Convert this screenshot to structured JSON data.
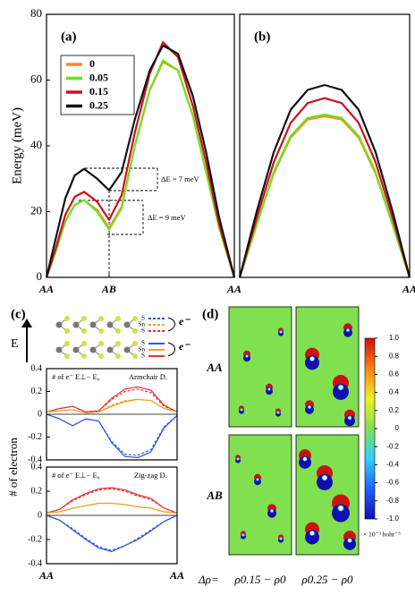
{
  "chart_data": [
    {
      "type": "line",
      "title": "(a)",
      "ylabel": "Energy (meV)",
      "x": [
        0,
        0.05,
        0.1,
        0.15,
        0.2,
        0.27,
        0.333,
        0.4,
        0.47,
        0.55,
        0.62,
        0.7,
        0.78,
        0.85,
        0.92,
        1
      ],
      "xlim": [
        0,
        1
      ],
      "xticks": [
        {
          "value": 0,
          "label": "AA"
        },
        {
          "value": 0.333,
          "label": "AB"
        },
        {
          "value": 1,
          "label": "AA"
        }
      ],
      "ylim": [
        0,
        80
      ],
      "yticks": [
        0,
        20,
        40,
        60,
        80
      ],
      "legend": "upper left",
      "annotations": [
        "ΔE = 7 meV",
        "ΔE = 9 meV"
      ],
      "series": [
        {
          "name": "0",
          "color": "#ff8a1c",
          "values": [
            0,
            8,
            17,
            22,
            23.5,
            20.5,
            15,
            21.5,
            40,
            57,
            65.5,
            63,
            49,
            32,
            15,
            0
          ]
        },
        {
          "name": "0.05",
          "color": "#6ee020",
          "values": [
            0,
            8,
            17,
            22,
            23.5,
            20,
            14.5,
            21,
            40,
            57,
            66,
            63,
            49,
            32,
            15,
            0
          ]
        },
        {
          "name": "0.15",
          "color": "#cc1020",
          "values": [
            0,
            9,
            19,
            24.5,
            26,
            23,
            17.5,
            25,
            44,
            62,
            71.5,
            67,
            52,
            35,
            16,
            0
          ]
        },
        {
          "name": "0.25",
          "color": "#111111",
          "values": [
            0,
            12,
            24,
            31,
            33,
            30,
            26.5,
            32,
            48,
            63,
            70.5,
            68,
            55,
            38,
            18,
            0
          ]
        }
      ]
    },
    {
      "type": "line",
      "title": "(b)",
      "x": [
        0,
        0.1,
        0.2,
        0.3,
        0.4,
        0.5,
        0.6,
        0.7,
        0.8,
        0.9,
        1
      ],
      "xlim": [
        0,
        1
      ],
      "xticks": [
        {
          "value": 1,
          "label": "AA"
        }
      ],
      "ylim": [
        0,
        80
      ],
      "series": [
        {
          "color": "#ff8a1c",
          "values": [
            0,
            16,
            31.5,
            42.5,
            48,
            49,
            48,
            42.5,
            31.5,
            16,
            0
          ]
        },
        {
          "color": "#6ee020",
          "values": [
            0,
            16,
            32,
            43,
            48.5,
            49.5,
            48.5,
            43,
            32,
            16,
            0
          ]
        },
        {
          "color": "#cc1020",
          "values": [
            0,
            18,
            35,
            47,
            53,
            54.5,
            53,
            47,
            35,
            18,
            0
          ]
        },
        {
          "color": "#111111",
          "values": [
            0,
            20,
            38,
            51,
            57,
            58.5,
            57,
            51,
            38,
            20,
            0
          ]
        }
      ]
    },
    {
      "type": "line",
      "title": "(c)",
      "ylabel": "# of electron",
      "x": [
        0,
        0.1,
        0.2,
        0.3,
        0.4,
        0.5,
        0.6,
        0.7,
        0.8,
        0.9,
        1
      ],
      "xlim": [
        0,
        1
      ],
      "ylim": [
        -0.4,
        0.4
      ],
      "yticks": [
        0.4,
        0.2,
        0,
        -0.2,
        -0.4
      ],
      "zero_line": true,
      "annotations": [
        "# of e⁻ E⊥− E₀",
        "Armchair D."
      ],
      "series": [
        {
          "color": "#e83038",
          "dashed": true,
          "values": [
            0.02,
            0.05,
            0.07,
            0.02,
            0.03,
            0.13,
            0.2,
            0.22,
            0.19,
            0.07,
            0.02
          ]
        },
        {
          "color": "#e83038",
          "values": [
            0.02,
            0.05,
            0.07,
            0.02,
            0.03,
            0.14,
            0.22,
            0.24,
            0.21,
            0.08,
            0.02
          ]
        },
        {
          "color": "#f0a020",
          "dashed": true,
          "values": [
            0.02,
            0.03,
            0.04,
            0.01,
            0.02,
            0.08,
            0.12,
            0.13,
            0.12,
            0.05,
            0.02
          ]
        },
        {
          "color": "#f0a020",
          "values": [
            0.02,
            0.03,
            0.04,
            0.01,
            0.02,
            0.07,
            0.11,
            0.13,
            0.12,
            0.05,
            0.02
          ]
        },
        {
          "color": "#3355dd",
          "dashed": true,
          "values": [
            0,
            -0.04,
            -0.1,
            -0.04,
            -0.06,
            -0.24,
            -0.35,
            -0.36,
            -0.31,
            -0.11,
            -0.01
          ]
        },
        {
          "color": "#3355dd",
          "values": [
            0,
            -0.04,
            -0.1,
            -0.04,
            -0.06,
            -0.25,
            -0.37,
            -0.38,
            -0.33,
            -0.12,
            -0.01
          ]
        }
      ]
    },
    {
      "type": "line",
      "x": [
        0,
        0.1,
        0.2,
        0.3,
        0.4,
        0.5,
        0.6,
        0.7,
        0.8,
        0.9,
        1
      ],
      "xlim": [
        0,
        1
      ],
      "xticks": [
        {
          "value": 0,
          "label": "AA"
        },
        {
          "value": 1,
          "label": "AA"
        }
      ],
      "ylim": [
        -0.4,
        0.4
      ],
      "yticks": [
        0.4,
        0.2,
        0,
        -0.2,
        -0.4
      ],
      "zero_line": true,
      "annotations": [
        "# of e⁻ E⊥− E₀",
        "Zig-zag D."
      ],
      "series": [
        {
          "color": "#e83038",
          "dashed": true,
          "values": [
            0.02,
            0.05,
            0.12,
            0.17,
            0.21,
            0.22,
            0.2,
            0.16,
            0.13,
            0.06,
            0.02
          ]
        },
        {
          "color": "#e83038",
          "values": [
            0.02,
            0.05,
            0.13,
            0.18,
            0.22,
            0.23,
            0.21,
            0.17,
            0.14,
            0.06,
            0.02
          ]
        },
        {
          "color": "#f0a020",
          "dashed": true,
          "values": [
            0.02,
            0.03,
            0.06,
            0.08,
            0.1,
            0.1,
            0.09,
            0.07,
            0.06,
            0.03,
            0.02
          ]
        },
        {
          "color": "#f0a020",
          "values": [
            0.02,
            0.03,
            0.06,
            0.08,
            0.1,
            0.1,
            0.09,
            0.07,
            0.06,
            0.03,
            0.02
          ]
        },
        {
          "color": "#3355dd",
          "dashed": true,
          "values": [
            0,
            -0.04,
            -0.11,
            -0.19,
            -0.26,
            -0.29,
            -0.25,
            -0.19,
            -0.12,
            -0.05,
            0
          ]
        },
        {
          "color": "#3355dd",
          "values": [
            0,
            -0.04,
            -0.12,
            -0.2,
            -0.27,
            -0.3,
            -0.25,
            -0.2,
            -0.13,
            -0.05,
            0
          ]
        }
      ]
    },
    {
      "type": "heatmap",
      "title": "(d)",
      "row_labels": [
        "AA",
        "AB"
      ],
      "col_prefix": "Δρ=",
      "col_labels": [
        "ρ0.15 − ρ0",
        "ρ0.25 − ρ0"
      ],
      "colormap": [
        "#1010b0",
        "#2060ff",
        "#30d0ff",
        "#80e050",
        "#f0f020",
        "#ff8010",
        "#d01010"
      ],
      "clim": [
        -1,
        1
      ],
      "cticks": [
        {
          "value": 1,
          "label": "1.0"
        },
        0.8,
        0.6,
        0.4,
        0.2,
        0,
        -0.2,
        -0.4,
        -0.6,
        -0.8,
        {
          "value": -1,
          "label": "-1.0"
        }
      ],
      "clabel": "× 10⁻³ bohr⁻³"
    }
  ],
  "diagram": {
    "field": "E",
    "layers": [
      "S",
      "Sn",
      "S"
    ],
    "carrier": "e⁻"
  }
}
